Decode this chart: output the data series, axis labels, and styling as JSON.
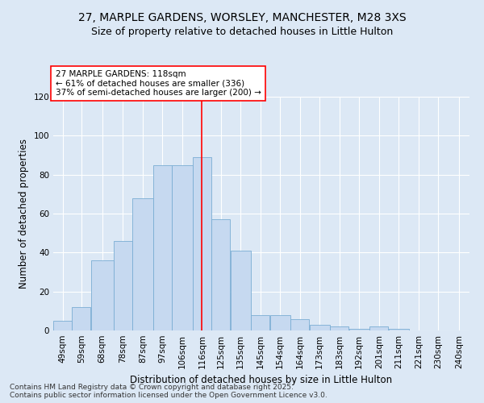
{
  "title_line1": "27, MARPLE GARDENS, WORSLEY, MANCHESTER, M28 3XS",
  "title_line2": "Size of property relative to detached houses in Little Hulton",
  "xlabel": "Distribution of detached houses by size in Little Hulton",
  "ylabel": "Number of detached properties",
  "bin_labels": [
    "49sqm",
    "59sqm",
    "68sqm",
    "78sqm",
    "87sqm",
    "97sqm",
    "106sqm",
    "116sqm",
    "125sqm",
    "135sqm",
    "145sqm",
    "154sqm",
    "164sqm",
    "173sqm",
    "183sqm",
    "192sqm",
    "201sqm",
    "211sqm",
    "221sqm",
    "230sqm",
    "240sqm"
  ],
  "bins": [
    44.5,
    53.5,
    62.5,
    73.5,
    82.5,
    92.5,
    101.5,
    111.5,
    120.5,
    129.5,
    139.5,
    148.5,
    158.5,
    167.5,
    177.5,
    186.5,
    196.5,
    205.5,
    215.5,
    224.5,
    234.5,
    244.5
  ],
  "bar_heights": [
    5,
    12,
    36,
    46,
    68,
    85,
    85,
    89,
    57,
    41,
    8,
    8,
    6,
    3,
    2,
    1,
    2,
    1,
    0,
    0,
    0
  ],
  "bar_color": "#c6d9f0",
  "bar_edge_color": "#7aadd4",
  "vline_x": 116,
  "vline_color": "red",
  "annotation_text": "27 MARPLE GARDENS: 118sqm\n← 61% of detached houses are smaller (336)\n37% of semi-detached houses are larger (200) →",
  "annotation_box_color": "white",
  "annotation_box_edge": "red",
  "ylim": [
    0,
    120
  ],
  "yticks": [
    0,
    20,
    40,
    60,
    80,
    100,
    120
  ],
  "bg_color": "#dce8f5",
  "grid_color": "#ffffff",
  "footer_line1": "Contains HM Land Registry data © Crown copyright and database right 2025.",
  "footer_line2": "Contains public sector information licensed under the Open Government Licence v3.0.",
  "title_fontsize": 10,
  "subtitle_fontsize": 9,
  "axis_label_fontsize": 8.5,
  "tick_fontsize": 7.5,
  "annotation_fontsize": 7.5,
  "footer_fontsize": 6.5
}
